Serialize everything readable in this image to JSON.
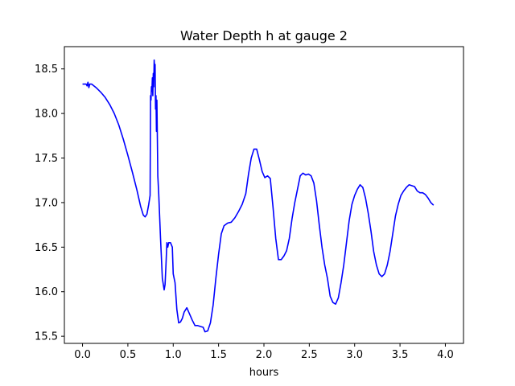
{
  "chart_data": {
    "type": "line",
    "title": "Water Depth h at gauge 2",
    "xlabel": "hours",
    "ylabel": "",
    "xlim": [
      -0.2,
      4.2
    ],
    "ylim": [
      15.42,
      18.75
    ],
    "grid": false,
    "x_ticks": [
      "0.0",
      "0.5",
      "1.0",
      "1.5",
      "2.0",
      "2.5",
      "3.0",
      "3.5",
      "4.0"
    ],
    "y_ticks": [
      "15.5",
      "16.0",
      "16.5",
      "17.0",
      "17.5",
      "18.0",
      "18.5"
    ],
    "series": [
      {
        "color": "#0000ff",
        "points": [
          [
            0.0,
            18.33
          ],
          [
            0.02,
            18.33
          ],
          [
            0.04,
            18.33
          ],
          [
            0.05,
            18.31
          ],
          [
            0.06,
            18.35
          ],
          [
            0.07,
            18.29
          ],
          [
            0.08,
            18.33
          ],
          [
            0.1,
            18.33
          ],
          [
            0.15,
            18.29
          ],
          [
            0.2,
            18.24
          ],
          [
            0.25,
            18.18
          ],
          [
            0.3,
            18.1
          ],
          [
            0.35,
            18.0
          ],
          [
            0.4,
            17.87
          ],
          [
            0.45,
            17.71
          ],
          [
            0.5,
            17.53
          ],
          [
            0.55,
            17.34
          ],
          [
            0.6,
            17.14
          ],
          [
            0.64,
            16.96
          ],
          [
            0.67,
            16.86
          ],
          [
            0.69,
            16.84
          ],
          [
            0.71,
            16.87
          ],
          [
            0.73,
            16.98
          ],
          [
            0.745,
            17.08
          ],
          [
            0.75,
            18.2
          ],
          [
            0.755,
            18.15
          ],
          [
            0.76,
            18.3
          ],
          [
            0.765,
            18.25
          ],
          [
            0.77,
            18.4
          ],
          [
            0.775,
            18.2
          ],
          [
            0.78,
            18.45
          ],
          [
            0.785,
            18.3
          ],
          [
            0.79,
            18.6
          ],
          [
            0.795,
            18.5
          ],
          [
            0.8,
            18.55
          ],
          [
            0.805,
            18.05
          ],
          [
            0.81,
            18.2
          ],
          [
            0.815,
            17.8
          ],
          [
            0.82,
            18.15
          ],
          [
            0.83,
            17.3
          ],
          [
            0.84,
            17.1
          ],
          [
            0.86,
            16.6
          ],
          [
            0.88,
            16.15
          ],
          [
            0.9,
            16.02
          ],
          [
            0.91,
            16.08
          ],
          [
            0.92,
            16.3
          ],
          [
            0.93,
            16.55
          ],
          [
            0.94,
            16.5
          ],
          [
            0.95,
            16.55
          ],
          [
            0.97,
            16.55
          ],
          [
            0.99,
            16.5
          ],
          [
            1.0,
            16.2
          ],
          [
            1.02,
            16.1
          ],
          [
            1.04,
            15.8
          ],
          [
            1.06,
            15.65
          ],
          [
            1.08,
            15.66
          ],
          [
            1.1,
            15.7
          ],
          [
            1.12,
            15.77
          ],
          [
            1.15,
            15.82
          ],
          [
            1.18,
            15.75
          ],
          [
            1.21,
            15.68
          ],
          [
            1.24,
            15.62
          ],
          [
            1.27,
            15.62
          ],
          [
            1.3,
            15.61
          ],
          [
            1.33,
            15.6
          ],
          [
            1.35,
            15.55
          ],
          [
            1.38,
            15.56
          ],
          [
            1.41,
            15.65
          ],
          [
            1.44,
            15.85
          ],
          [
            1.47,
            16.15
          ],
          [
            1.5,
            16.42
          ],
          [
            1.53,
            16.65
          ],
          [
            1.56,
            16.74
          ],
          [
            1.6,
            16.77
          ],
          [
            1.64,
            16.78
          ],
          [
            1.68,
            16.83
          ],
          [
            1.72,
            16.9
          ],
          [
            1.76,
            16.98
          ],
          [
            1.8,
            17.1
          ],
          [
            1.83,
            17.32
          ],
          [
            1.86,
            17.5
          ],
          [
            1.89,
            17.6
          ],
          [
            1.92,
            17.6
          ],
          [
            1.95,
            17.48
          ],
          [
            1.98,
            17.35
          ],
          [
            2.01,
            17.28
          ],
          [
            2.04,
            17.3
          ],
          [
            2.07,
            17.27
          ],
          [
            2.1,
            16.95
          ],
          [
            2.13,
            16.6
          ],
          [
            2.16,
            16.36
          ],
          [
            2.19,
            16.36
          ],
          [
            2.22,
            16.4
          ],
          [
            2.25,
            16.46
          ],
          [
            2.28,
            16.6
          ],
          [
            2.31,
            16.82
          ],
          [
            2.34,
            17.0
          ],
          [
            2.37,
            17.15
          ],
          [
            2.4,
            17.3
          ],
          [
            2.43,
            17.33
          ],
          [
            2.46,
            17.31
          ],
          [
            2.49,
            17.32
          ],
          [
            2.52,
            17.3
          ],
          [
            2.55,
            17.22
          ],
          [
            2.58,
            17.02
          ],
          [
            2.61,
            16.75
          ],
          [
            2.64,
            16.5
          ],
          [
            2.67,
            16.3
          ],
          [
            2.7,
            16.15
          ],
          [
            2.73,
            15.95
          ],
          [
            2.76,
            15.88
          ],
          [
            2.79,
            15.86
          ],
          [
            2.82,
            15.93
          ],
          [
            2.85,
            16.1
          ],
          [
            2.88,
            16.3
          ],
          [
            2.91,
            16.55
          ],
          [
            2.94,
            16.8
          ],
          [
            2.97,
            16.98
          ],
          [
            3.0,
            17.08
          ],
          [
            3.03,
            17.15
          ],
          [
            3.06,
            17.2
          ],
          [
            3.09,
            17.17
          ],
          [
            3.12,
            17.05
          ],
          [
            3.15,
            16.88
          ],
          [
            3.18,
            16.68
          ],
          [
            3.21,
            16.45
          ],
          [
            3.24,
            16.3
          ],
          [
            3.27,
            16.2
          ],
          [
            3.3,
            16.17
          ],
          [
            3.33,
            16.2
          ],
          [
            3.36,
            16.3
          ],
          [
            3.39,
            16.45
          ],
          [
            3.42,
            16.65
          ],
          [
            3.45,
            16.85
          ],
          [
            3.48,
            16.98
          ],
          [
            3.51,
            17.08
          ],
          [
            3.54,
            17.13
          ],
          [
            3.57,
            17.17
          ],
          [
            3.6,
            17.2
          ],
          [
            3.63,
            17.19
          ],
          [
            3.66,
            17.18
          ],
          [
            3.69,
            17.13
          ],
          [
            3.72,
            17.11
          ],
          [
            3.75,
            17.11
          ],
          [
            3.78,
            17.09
          ],
          [
            3.81,
            17.05
          ],
          [
            3.84,
            17.0
          ],
          [
            3.87,
            16.97
          ]
        ]
      }
    ]
  }
}
